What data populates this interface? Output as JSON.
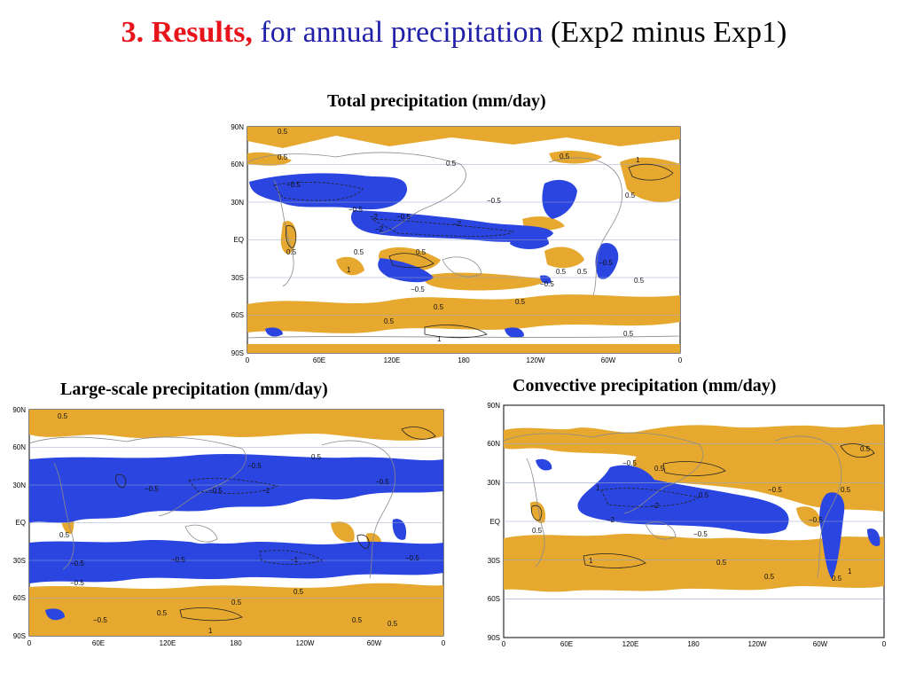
{
  "slide": {
    "title_part1": "3. Results,",
    "title_part2": "for annual precipitation",
    "title_part3": "(Exp2 minus Exp1)"
  },
  "colors": {
    "positive": "#e6a82e",
    "negative": "#2a45e0",
    "title_red": "#e8141b",
    "title_blue": "#1f1fa8"
  },
  "panels": [
    {
      "title": "Total precipitation (mm/day)",
      "lat_labels": [
        "90N",
        "60N",
        "30N",
        "EQ",
        "30S",
        "60S",
        "90S"
      ],
      "lon_labels": [
        "0",
        "60E",
        "120E",
        "180",
        "120W",
        "60W",
        "0"
      ],
      "contour_labels": [
        "0.5",
        "0.5",
        "0.5",
        "0.5",
        "1",
        "−0.5",
        "−0.5",
        "−2",
        "−2",
        "−0.5",
        "−2",
        "−0.5",
        "0.5",
        "1",
        "0.5",
        "0.5",
        "−0.5",
        "0.5",
        "0.5",
        "1",
        "0.5",
        "−0.5",
        "0.5",
        "0.5",
        "0.5",
        "0.5",
        "0.5",
        "−0.5"
      ]
    },
    {
      "title": "Large-scale precipitation (mm/day)",
      "lat_labels": [
        "90N",
        "60N",
        "30N",
        "EQ",
        "30S",
        "60S",
        "90S"
      ],
      "lon_labels": [
        "0",
        "60E",
        "120E",
        "180",
        "120W",
        "60W",
        "0"
      ],
      "contour_labels": [
        "0.5",
        "0.5",
        "−0.5",
        "−0.5",
        "−0.5",
        "−1",
        "−0.5",
        "0.5",
        "−0.5",
        "−0.5",
        "−1",
        "−0.5",
        "−0.5",
        "0.5",
        "0.5",
        "0.5",
        "0.5",
        "1",
        "0.5",
        "−0.5"
      ]
    },
    {
      "title": "Convective precipitation (mm/day)",
      "lat_labels": [
        "90N",
        "60N",
        "30N",
        "EQ",
        "30S",
        "60S",
        "90S"
      ],
      "lon_labels": [
        "0",
        "60E",
        "120E",
        "180",
        "120W",
        "60W",
        "0"
      ],
      "contour_labels": [
        "0.5",
        "−0.5",
        "0.5",
        "1",
        "−2",
        "−2",
        "0.5",
        "−0.5",
        "−0.5",
        "1",
        "0.5",
        "0.5",
        "0.5",
        "0.5",
        "1",
        "0.5",
        "−0.5"
      ]
    }
  ]
}
